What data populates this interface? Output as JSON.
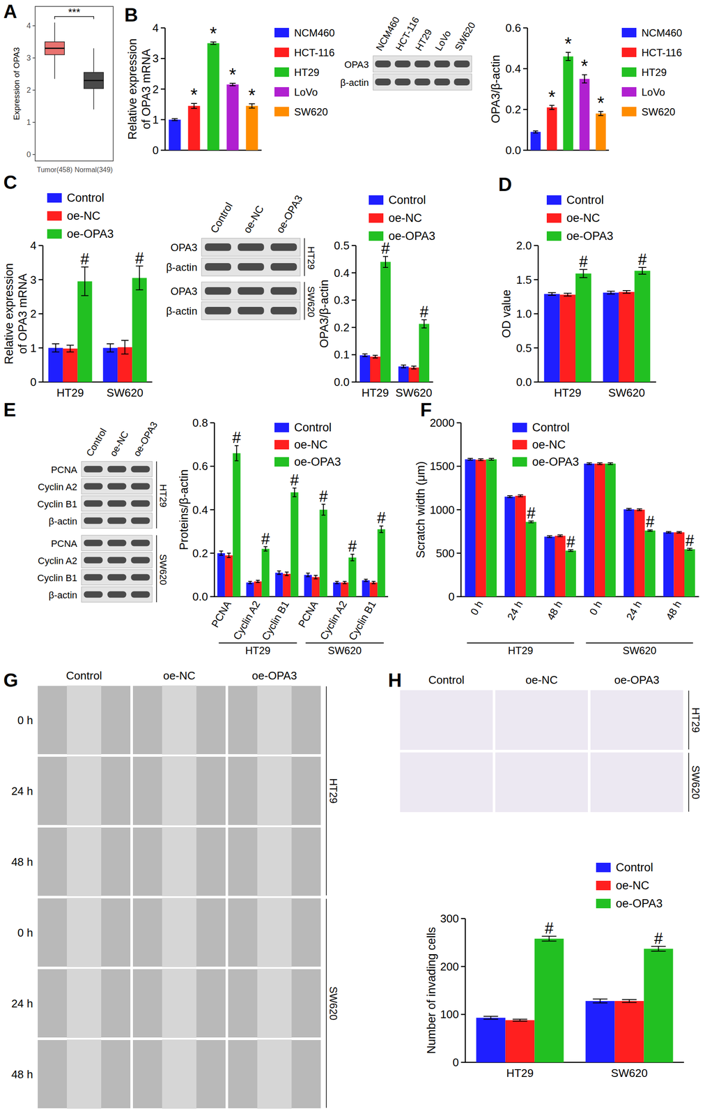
{
  "panels": [
    "A",
    "B",
    "C",
    "D",
    "E",
    "F",
    "G",
    "H"
  ],
  "chart_data": [
    {
      "type": "box",
      "categories": [
        "Tumor(458)",
        "Normal(349)"
      ],
      "y_label": [
        "Expression of OPA3"
      ],
      "ylim": [
        -0.2,
        4.6
      ],
      "yticks": [
        0,
        1,
        2,
        3,
        4
      ],
      "boxes": [
        {
          "min": 2.35,
          "q1": 3.1,
          "median": 3.3,
          "q3": 3.5,
          "max": 4.1
        },
        {
          "min": 1.4,
          "q1": 2.05,
          "median": 2.3,
          "q3": 2.55,
          "max": 3.3
        }
      ],
      "colors": [
        "#e8726f",
        "#4a4a4a"
      ],
      "annotations": [
        "***"
      ]
    },
    {
      "type": "bar",
      "categories": [
        "NCM460",
        "HCT-116",
        "HT29",
        "LoVo",
        "SW620"
      ],
      "values": [
        1.0,
        1.45,
        3.5,
        2.15,
        1.45
      ],
      "errors": [
        0.03,
        0.08,
        0.04,
        0.04,
        0.07
      ],
      "colors": [
        "#1f1fff",
        "#ff1f1f",
        "#22c022",
        "#b020d0",
        "#ff8c00"
      ],
      "annotations": [
        null,
        "*",
        "*",
        "*",
        "*"
      ],
      "y_label": [
        "Relative expression",
        "of OPA3 mRNA"
      ],
      "ylim": [
        0,
        4
      ],
      "yticks": [
        0,
        1,
        2,
        3,
        4
      ],
      "legend": "right",
      "tick_labels": "y"
    },
    {
      "type": "bar",
      "categories": [
        "NCM460",
        "HCT-116",
        "HT29",
        "LoVo",
        "SW620"
      ],
      "values": [
        0.09,
        0.21,
        0.46,
        0.35,
        0.18
      ],
      "errors": [
        0.005,
        0.01,
        0.02,
        0.02,
        0.01
      ],
      "colors": [
        "#1f1fff",
        "#ff1f1f",
        "#22c022",
        "#b020d0",
        "#ff8c00"
      ],
      "annotations": [
        null,
        "*",
        "*",
        "*",
        "*"
      ],
      "y_label": [
        "OPA3/β-actin"
      ],
      "ylim": [
        0,
        0.6
      ],
      "yticks": [
        {
          "value": 0,
          "label": "0.0"
        },
        {
          "value": 0.2,
          "label": "0.2"
        },
        {
          "value": 0.4,
          "label": "0.4"
        },
        {
          "value": 0.6,
          "label": "0.6"
        }
      ],
      "legend": "right",
      "tick_labels": "y"
    },
    {
      "type": "bar",
      "categories": [
        "HT29",
        "SW620"
      ],
      "y_label": [
        "Relative expression",
        "of OPA3 mRNA"
      ],
      "ylim": [
        0,
        4
      ],
      "yticks": [
        0,
        1,
        2,
        3,
        4
      ],
      "legend": "top",
      "series": [
        {
          "name": "Control",
          "color": "#1f1fff",
          "values": [
            1.0,
            1.0
          ],
          "errors": [
            0.12,
            0.12
          ]
        },
        {
          "name": "oe-NC",
          "color": "#ff1f1f",
          "values": [
            0.98,
            1.02
          ],
          "errors": [
            0.1,
            0.2
          ]
        },
        {
          "name": "oe-OPA3",
          "color": "#22c022",
          "values": [
            2.95,
            3.05
          ],
          "errors": [
            0.42,
            0.35
          ],
          "annotations": [
            "#",
            "#"
          ]
        }
      ]
    },
    {
      "type": "bar",
      "categories": [
        "HT29",
        "SW620"
      ],
      "y_label": [
        "OPA3/β-actin"
      ],
      "ylim": [
        0,
        0.5
      ],
      "yticks": [
        {
          "value": 0,
          "label": "0.0"
        },
        {
          "value": 0.1,
          "label": "0.1"
        },
        {
          "value": 0.2,
          "label": "0.2"
        },
        {
          "value": 0.3,
          "label": "0.3"
        },
        {
          "value": 0.4,
          "label": "0.4"
        },
        {
          "value": 0.5,
          "label": "0.5"
        }
      ],
      "legend": "top",
      "series": [
        {
          "name": "Control",
          "color": "#1f1fff",
          "values": [
            0.098,
            0.057
          ],
          "errors": [
            0.005,
            0.005
          ]
        },
        {
          "name": "oe-NC",
          "color": "#ff1f1f",
          "values": [
            0.093,
            0.053
          ],
          "errors": [
            0.005,
            0.005
          ]
        },
        {
          "name": "oe-OPA3",
          "color": "#22c022",
          "values": [
            0.44,
            0.213
          ],
          "errors": [
            0.02,
            0.015
          ],
          "annotations": [
            "#",
            "#"
          ]
        }
      ]
    },
    {
      "type": "bar",
      "categories": [
        "HT29",
        "SW620"
      ],
      "y_label": [
        "OD value"
      ],
      "ylim": [
        0,
        2
      ],
      "yticks": [
        {
          "value": 0,
          "label": "0.0"
        },
        {
          "value": 0.5,
          "label": "0.5"
        },
        {
          "value": 1,
          "label": "1.0"
        },
        {
          "value": 1.5,
          "label": "1.5"
        },
        {
          "value": 2,
          "label": "2.0"
        }
      ],
      "legend": "top",
      "series": [
        {
          "name": "Control",
          "color": "#1f1fff",
          "values": [
            1.29,
            1.31
          ],
          "errors": [
            0.02,
            0.02
          ]
        },
        {
          "name": "oe-NC",
          "color": "#ff1f1f",
          "values": [
            1.28,
            1.32
          ],
          "errors": [
            0.02,
            0.02
          ]
        },
        {
          "name": "oe-OPA3",
          "color": "#22c022",
          "values": [
            1.59,
            1.63
          ],
          "errors": [
            0.06,
            0.05
          ],
          "annotations": [
            "#",
            "#"
          ]
        }
      ]
    },
    {
      "type": "bar",
      "categories": [
        "PCNA",
        "Cyclin A2",
        "Cyclin B1",
        "PCNA",
        "Cyclin A2",
        "Cyclin B1"
      ],
      "groups": [
        "HT29",
        "SW620"
      ],
      "y_label": [
        "Proteins/β-actin"
      ],
      "ylim": [
        0,
        0.8
      ],
      "yticks": [
        {
          "value": 0,
          "label": "0.0"
        },
        {
          "value": 0.2,
          "label": "0.2"
        },
        {
          "value": 0.4,
          "label": "0.4"
        },
        {
          "value": 0.6,
          "label": "0.6"
        },
        {
          "value": 0.8,
          "label": "0.8"
        }
      ],
      "legend": "top",
      "series": [
        {
          "name": "Control",
          "color": "#1f1fff",
          "values": [
            0.2,
            0.065,
            0.11,
            0.1,
            0.065,
            0.075
          ],
          "errors": [
            0.01,
            0.005,
            0.008,
            0.008,
            0.005,
            0.005
          ]
        },
        {
          "name": "oe-NC",
          "color": "#ff1f1f",
          "values": [
            0.19,
            0.07,
            0.105,
            0.09,
            0.065,
            0.065
          ],
          "errors": [
            0.01,
            0.005,
            0.008,
            0.008,
            0.005,
            0.005
          ]
        },
        {
          "name": "oe-OPA3",
          "color": "#22c022",
          "values": [
            0.66,
            0.22,
            0.48,
            0.4,
            0.18,
            0.31
          ],
          "errors": [
            0.035,
            0.01,
            0.02,
            0.025,
            0.015,
            0.015
          ],
          "annotations": [
            "#",
            "#",
            "#",
            "#",
            "#",
            "#"
          ]
        }
      ]
    },
    {
      "type": "bar",
      "categories": [
        "0 h",
        "24 h",
        "48 h",
        "0 h",
        "24 h",
        "48 h"
      ],
      "groups": [
        "HT29",
        "SW620"
      ],
      "y_label": [
        "Scratch width (μm)"
      ],
      "ylim": [
        0,
        2000
      ],
      "yticks": [
        0,
        500,
        1000,
        1500,
        2000
      ],
      "legend": "top",
      "series": [
        {
          "name": "Control",
          "color": "#1f1fff",
          "values": [
            1580,
            1150,
            690,
            1530,
            1005,
            740
          ],
          "errors": [
            10,
            10,
            10,
            10,
            10,
            8
          ]
        },
        {
          "name": "oe-NC",
          "color": "#ff1f1f",
          "values": [
            1575,
            1160,
            700,
            1530,
            1000,
            740
          ],
          "errors": [
            10,
            10,
            10,
            10,
            10,
            8
          ]
        },
        {
          "name": "oe-OPA3",
          "color": "#22c022",
          "values": [
            1580,
            860,
            530,
            1530,
            760,
            545
          ],
          "errors": [
            10,
            10,
            10,
            10,
            8,
            10
          ],
          "annotations": [
            null,
            "#",
            "#",
            null,
            "#",
            "#"
          ]
        }
      ]
    },
    {
      "type": "bar",
      "categories": [
        "HT29",
        "SW620"
      ],
      "y_label": [
        "Number of invading cells"
      ],
      "ylim": [
        0,
        300
      ],
      "yticks": [
        0,
        100,
        200,
        300
      ],
      "legend": "top",
      "series": [
        {
          "name": "Control",
          "color": "#1f1fff",
          "values": [
            93,
            128
          ],
          "errors": [
            3,
            4
          ]
        },
        {
          "name": "oe-NC",
          "color": "#ff1f1f",
          "values": [
            88,
            128
          ],
          "errors": [
            2,
            3
          ]
        },
        {
          "name": "oe-OPA3",
          "color": "#22c022",
          "values": [
            258,
            237
          ],
          "errors": [
            5,
            5
          ],
          "annotations": [
            "#",
            "#"
          ]
        }
      ]
    }
  ],
  "blots": [
    {
      "columns": [
        "NCM460",
        "HCT-116",
        "HT29",
        "LoVo",
        "SW620"
      ],
      "sections": [
        {
          "rows": [
            "OPA3",
            "β-actin"
          ]
        }
      ]
    },
    {
      "columns": [
        "Control",
        "oe-NC",
        "oe-OPA3"
      ],
      "sections": [
        {
          "label": "HT29",
          "rows": [
            "OPA3",
            "β-actin"
          ]
        },
        {
          "label": "SW620",
          "rows": [
            "OPA3",
            "β-actin"
          ]
        }
      ]
    },
    {
      "columns": [
        "Control",
        "oe-NC",
        "oe-OPA3"
      ],
      "sections": [
        {
          "label": "HT29",
          "rows": [
            "PCNA",
            "Cyclin A2",
            "Cyclin B1",
            "β-actin"
          ]
        },
        {
          "label": "SW620",
          "rows": [
            "PCNA",
            "Cyclin A2",
            "Cyclin B1",
            "β-actin"
          ]
        }
      ]
    }
  ],
  "images": [
    {
      "columns": [
        "Control",
        "oe-NC",
        "oe-OPA3"
      ],
      "rows": [
        "0 h",
        "24 h",
        "48 h",
        "0 h",
        "24 h",
        "48 h"
      ],
      "groups": [
        "HT29",
        "SW620"
      ]
    },
    {
      "columns": [
        "Control",
        "oe-NC",
        "oe-OPA3"
      ],
      "groups": [
        "HT29",
        "SW620"
      ]
    }
  ]
}
